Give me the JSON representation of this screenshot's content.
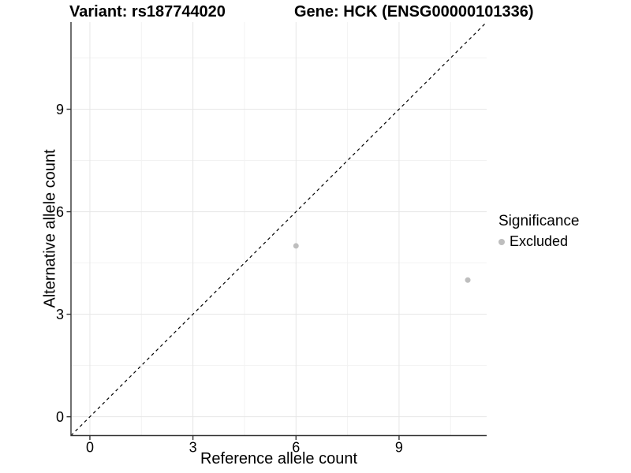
{
  "chart_data": {
    "type": "scatter",
    "title_left": "Variant: rs187744020",
    "title_right": "Gene: HCK (ENSG00000101336)",
    "xlabel": "Reference allele count",
    "ylabel": "Alternative allele count",
    "xlim": [
      -0.55,
      11.55
    ],
    "ylim": [
      -0.55,
      11.55
    ],
    "x_major_ticks": [
      0,
      3,
      6,
      9
    ],
    "y_major_ticks": [
      0,
      3,
      6,
      9
    ],
    "x_minor_ticks": [
      1.5,
      4.5,
      7.5,
      10.5
    ],
    "y_minor_ticks": [
      1.5,
      4.5,
      7.5,
      10.5
    ],
    "grid": {
      "shown": true,
      "major_color": "#e6e6e6",
      "minor_color": "#f2f2f2"
    },
    "identity_line": {
      "equation": "y = x",
      "style": "dashed",
      "color": "#000000"
    },
    "series": [
      {
        "name": "Excluded",
        "color": "#bebebe",
        "points": [
          {
            "x": 6,
            "y": 5
          },
          {
            "x": 11,
            "y": 4
          }
        ]
      }
    ],
    "legend": {
      "title": "Significance",
      "position": "right",
      "items": [
        {
          "label": "Excluded",
          "color": "#bebebe"
        }
      ]
    },
    "axis_color": "#333333",
    "point_radius": 3.5
  }
}
